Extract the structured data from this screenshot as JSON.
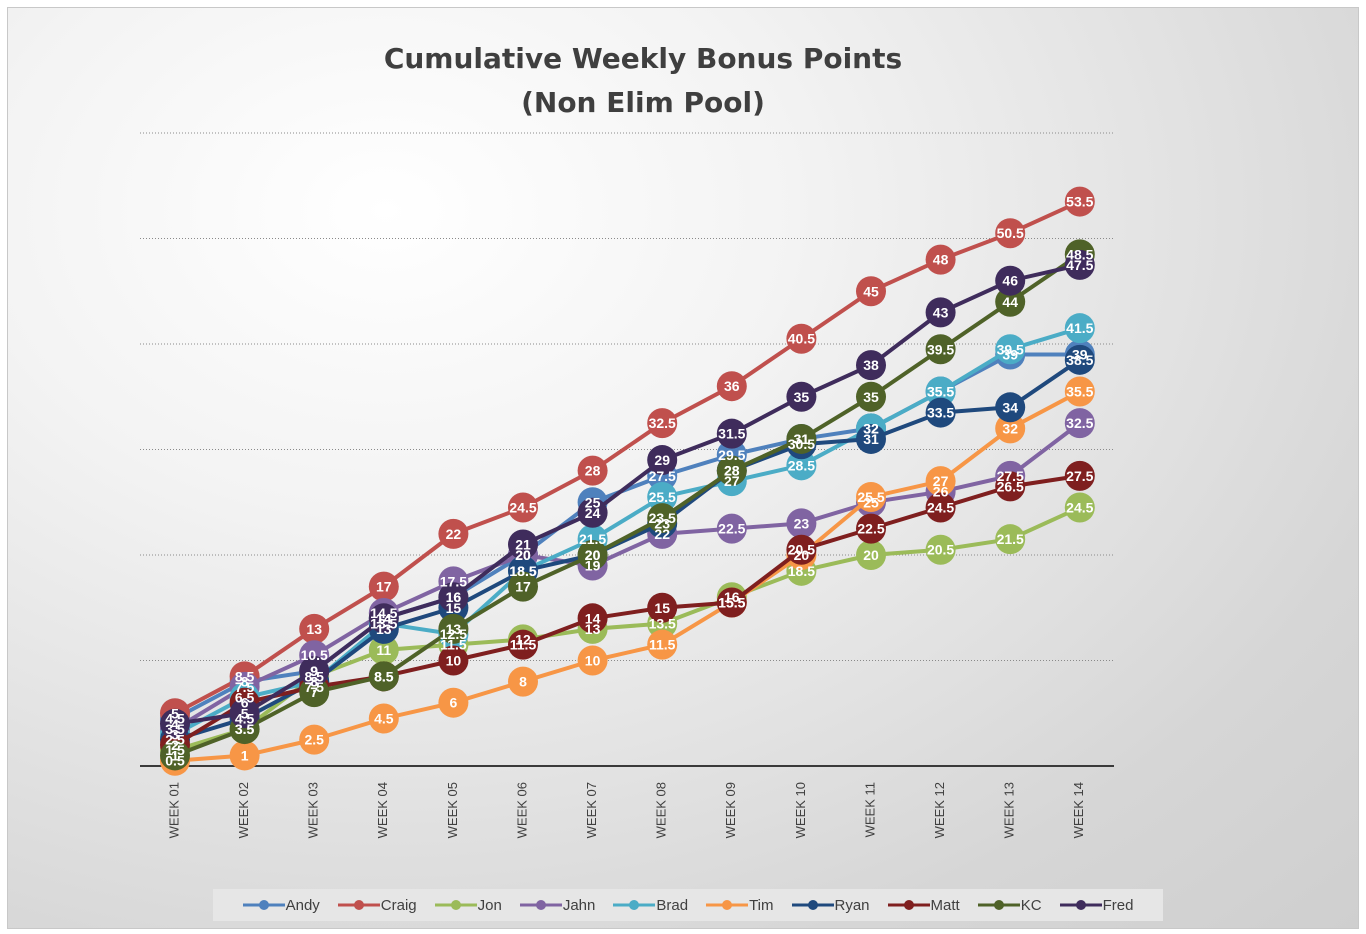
{
  "chart_data": {
    "type": "line",
    "title": [
      "Cumulative Weekly Bonus Points",
      "(Non Elim Pool)"
    ],
    "xlabel": "",
    "ylabel": "",
    "ylim": [
      0,
      60
    ],
    "grid": true,
    "legend_position": "bottom",
    "categories": [
      "WEEK 01",
      "WEEK 02",
      "WEEK 03",
      "WEEK 04",
      "WEEK 05",
      "WEEK 06",
      "WEEK 07",
      "WEEK 08",
      "WEEK 09",
      "WEEK 10",
      "WEEK 11",
      "WEEK 12",
      "WEEK 13",
      "WEEK 14"
    ],
    "series": [
      {
        "name": "Andy",
        "color": "#4f81bd",
        "values": [
          4.5,
          8,
          9,
          14,
          16,
          20,
          25,
          27.5,
          29.5,
          31,
          32,
          35.5,
          39,
          39
        ]
      },
      {
        "name": "Craig",
        "color": "#c0504d",
        "values": [
          5,
          8.5,
          13,
          17,
          22,
          24.5,
          28,
          32.5,
          36,
          40.5,
          45,
          48,
          50.5,
          53.5
        ]
      },
      {
        "name": "Jon",
        "color": "#9bbb59",
        "values": [
          1.5,
          3.5,
          8.5,
          11,
          11.5,
          12,
          13,
          13.5,
          16,
          18.5,
          20,
          20.5,
          21.5,
          24.5
        ]
      },
      {
        "name": "Jahn",
        "color": "#8064a2",
        "values": [
          3.5,
          7.5,
          10.5,
          14.5,
          17.5,
          20,
          19,
          22,
          22.5,
          23,
          25,
          26,
          27.5,
          32.5
        ]
      },
      {
        "name": "Brad",
        "color": "#4bacc6",
        "values": [
          3,
          6.5,
          8,
          13.5,
          12.5,
          18.5,
          21.5,
          25.5,
          27,
          28.5,
          32,
          35.5,
          39.5,
          41.5
        ]
      },
      {
        "name": "Tim",
        "color": "#f79646",
        "values": [
          0.5,
          1,
          2.5,
          4.5,
          6,
          8,
          10,
          11.5,
          15.5,
          20,
          25.5,
          27,
          32,
          35.5
        ]
      },
      {
        "name": "Ryan",
        "color": "#1f497d",
        "values": [
          2.5,
          4.5,
          8,
          13,
          15,
          18.5,
          20,
          23,
          28,
          30.5,
          31,
          33.5,
          34,
          38.5
        ]
      },
      {
        "name": "Matt",
        "color": "#7f1f1f",
        "values": [
          2,
          6,
          7.5,
          8.5,
          10,
          11.5,
          14,
          15,
          15.5,
          20.5,
          22.5,
          24.5,
          26.5,
          27.5
        ]
      },
      {
        "name": "KC",
        "color": "#4f6228",
        "values": [
          1,
          3.5,
          7,
          8.5,
          13,
          17,
          20,
          23.5,
          28,
          31,
          35,
          39.5,
          44,
          48.5
        ]
      },
      {
        "name": "Fred",
        "color": "#3f2c5c",
        "values": [
          4,
          5,
          9,
          14,
          16,
          21,
          24,
          29,
          31.5,
          35,
          38,
          43,
          46,
          47.5
        ]
      }
    ]
  }
}
